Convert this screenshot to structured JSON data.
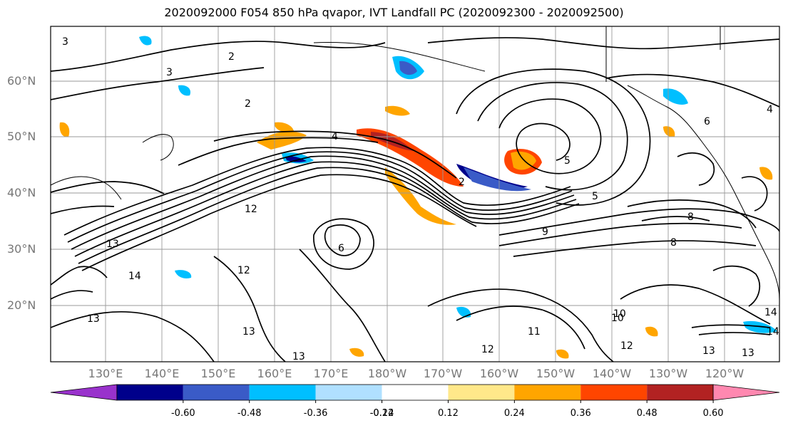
{
  "title": "2020092000 F054 850 hPa qvapor, IVT Landfall PC (2020092300 - 2020092500)",
  "lat_labels": [
    "60°N",
    "50°N",
    "40°N",
    "30°N",
    "20°N"
  ],
  "lon_labels": [
    "130°E",
    "140°E",
    "150°E",
    "160°E",
    "170°E",
    "180°W",
    "170°W",
    "160°W",
    "150°W",
    "140°W",
    "130°W",
    "120°W"
  ],
  "colorbar": {
    "colors": [
      "#9932cc",
      "#00008b",
      "#3a5bc7",
      "#00bfff",
      "#b0e0ff",
      "#ffffff",
      "#ffe88a",
      "#ffa500",
      "#ff4500",
      "#b22222",
      "#ff88b0"
    ],
    "tick_labels": [
      "-0.60",
      "-0.48",
      "-0.36",
      "-0.24",
      "-0.12",
      "0.12",
      "0.24",
      "0.36",
      "0.48",
      "0.60"
    ]
  },
  "contour_labels": [
    "3",
    "2",
    "3",
    "2",
    "4",
    "2",
    "4",
    "5",
    "8",
    "10",
    "12",
    "13",
    "14",
    "13",
    "12",
    "13",
    "12",
    "13",
    "13",
    "14",
    "6",
    "5",
    "8",
    "6",
    "9",
    "11",
    "12",
    "10",
    "13",
    "14"
  ]
}
